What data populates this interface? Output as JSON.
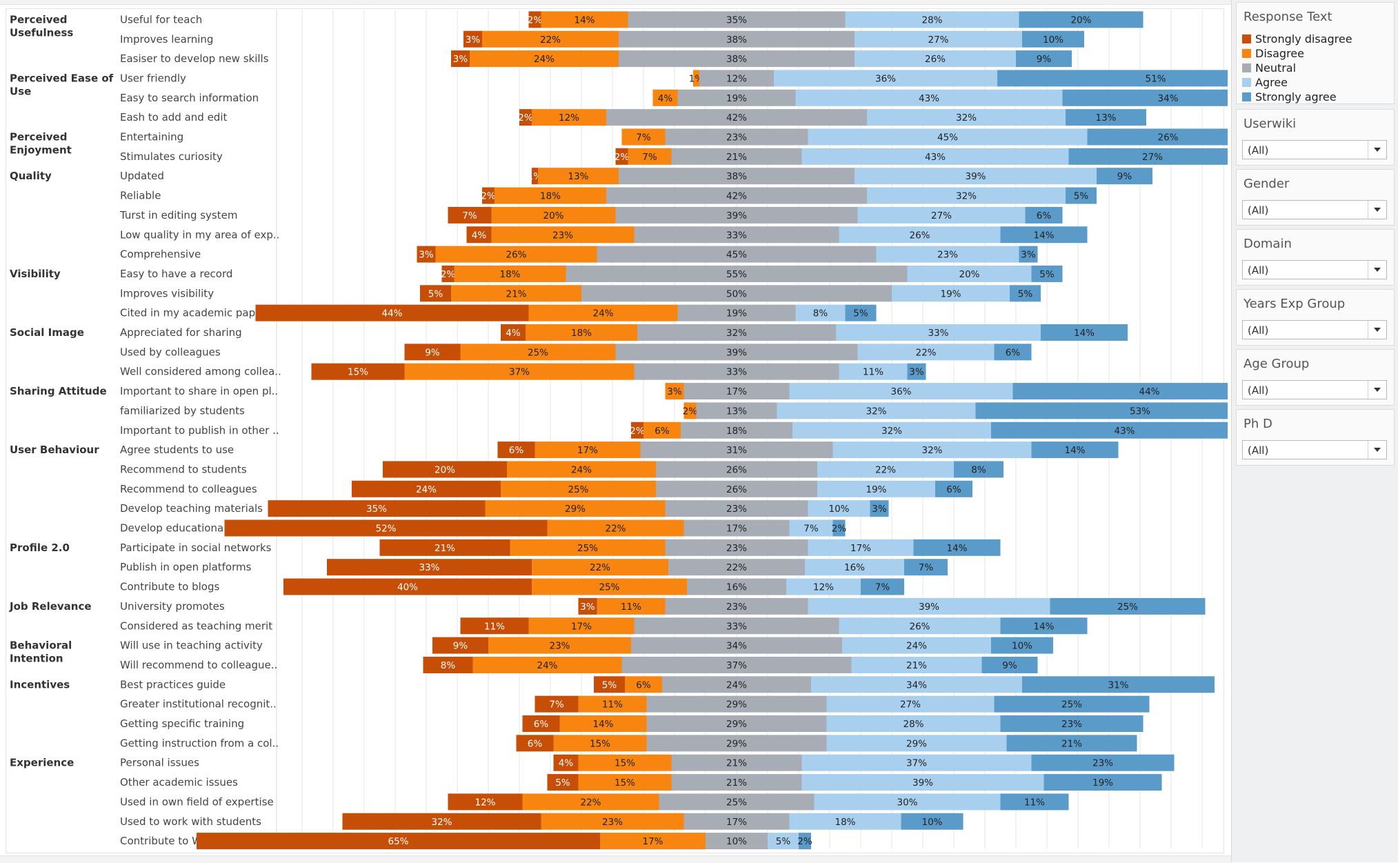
{
  "colors": {
    "strongly_disagree": "#c64e06",
    "disagree": "#f7850f",
    "neutral": "#a7acb5",
    "agree": "#a9cfee",
    "strongly_agree": "#5b9bc9",
    "grid": "#e6e6e6"
  },
  "legend": {
    "title": "Response Text",
    "items": [
      "Strongly disagree",
      "Disagree",
      "Neutral",
      "Agree",
      "Strongly agree"
    ]
  },
  "filters": [
    {
      "title": "Userwiki",
      "value": "(All)"
    },
    {
      "title": "Gender",
      "value": "(All)"
    },
    {
      "title": "Domain",
      "value": "(All)"
    },
    {
      "title": "Years Exp Group",
      "value": "(All)"
    },
    {
      "title": "Age Group",
      "value": "(All)"
    },
    {
      "title": "Ph D",
      "value": "(All)"
    }
  ],
  "chart_data": {
    "type": "bar",
    "orientation": "horizontal",
    "stacking": "diverging",
    "series_names": [
      "Strongly disagree",
      "Disagree",
      "Neutral",
      "Agree",
      "Strongly agree"
    ],
    "grid": true,
    "legend_position": "right",
    "groups": [
      {
        "name": "Perceived Usefulness",
        "rows": [
          {
            "label": "Useful for teach",
            "values": [
              2,
              14,
              35,
              28,
              20
            ]
          },
          {
            "label": "Improves learning",
            "values": [
              3,
              22,
              38,
              27,
              10
            ]
          },
          {
            "label": "Easiser to develop new skills",
            "values": [
              3,
              24,
              38,
              26,
              9
            ]
          }
        ]
      },
      {
        "name": "Perceived Ease of Use",
        "rows": [
          {
            "label": "User friendly",
            "values": [
              0,
              1,
              12,
              36,
              51
            ]
          },
          {
            "label": "Easy to search information",
            "values": [
              0,
              4,
              19,
              43,
              34
            ]
          },
          {
            "label": "Eash to add and edit",
            "values": [
              2,
              12,
              42,
              32,
              13
            ]
          }
        ]
      },
      {
        "name": "Perceived Enjoyment",
        "rows": [
          {
            "label": "Entertaining",
            "values": [
              0,
              7,
              23,
              45,
              26
            ]
          },
          {
            "label": "Stimulates curiosity",
            "values": [
              2,
              7,
              21,
              43,
              27
            ]
          }
        ]
      },
      {
        "name": "Quality",
        "rows": [
          {
            "label": "Updated",
            "values": [
              1,
              13,
              38,
              39,
              9
            ]
          },
          {
            "label": "Reliable",
            "values": [
              2,
              18,
              42,
              32,
              5
            ]
          },
          {
            "label": "Turst in editing system",
            "values": [
              7,
              20,
              39,
              27,
              6
            ]
          },
          {
            "label": "Low quality in my area of exp..",
            "values": [
              4,
              23,
              33,
              26,
              14
            ]
          },
          {
            "label": "Comprehensive",
            "values": [
              3,
              26,
              45,
              23,
              3
            ]
          }
        ]
      },
      {
        "name": "Visibility",
        "rows": [
          {
            "label": "Easy to have a record",
            "values": [
              2,
              18,
              55,
              20,
              5
            ]
          },
          {
            "label": "Improves visibility",
            "values": [
              5,
              21,
              50,
              19,
              5
            ]
          },
          {
            "label": "Cited in my academic papers",
            "values": [
              44,
              24,
              19,
              8,
              5
            ]
          }
        ]
      },
      {
        "name": "Social Image",
        "rows": [
          {
            "label": "Appreciated for sharing",
            "values": [
              4,
              18,
              32,
              33,
              14
            ]
          },
          {
            "label": "Used by colleagues",
            "values": [
              9,
              25,
              39,
              22,
              6
            ]
          },
          {
            "label": "Well considered among collea..",
            "values": [
              15,
              37,
              33,
              11,
              3
            ]
          }
        ]
      },
      {
        "name": "Sharing Attitude",
        "rows": [
          {
            "label": "Important to share in open pl..",
            "values": [
              0,
              3,
              17,
              36,
              44
            ]
          },
          {
            "label": "familiarized by students",
            "values": [
              0,
              2,
              13,
              32,
              53
            ]
          },
          {
            "label": "Important to publish in other ..",
            "values": [
              2,
              6,
              18,
              32,
              43
            ]
          }
        ]
      },
      {
        "name": "User Behaviour",
        "rows": [
          {
            "label": "Agree students to use",
            "values": [
              6,
              17,
              31,
              32,
              14
            ]
          },
          {
            "label": "Recommend to students",
            "values": [
              20,
              24,
              26,
              22,
              8
            ]
          },
          {
            "label": "Recommend to colleagues",
            "values": [
              24,
              25,
              26,
              19,
              6
            ]
          },
          {
            "label": "Develop teaching materials",
            "values": [
              35,
              29,
              23,
              10,
              3
            ]
          },
          {
            "label": "Develop educational activities",
            "values": [
              52,
              22,
              17,
              7,
              2
            ]
          }
        ]
      },
      {
        "name": "Profile 2.0",
        "rows": [
          {
            "label": "Participate in social networks",
            "values": [
              21,
              25,
              23,
              17,
              14
            ]
          },
          {
            "label": "Publish in open platforms",
            "values": [
              33,
              22,
              22,
              16,
              7
            ]
          },
          {
            "label": "Contribute to blogs",
            "values": [
              40,
              25,
              16,
              12,
              7
            ]
          }
        ]
      },
      {
        "name": "Job Relevance",
        "rows": [
          {
            "label": "University promotes",
            "values": [
              3,
              11,
              23,
              39,
              25
            ]
          },
          {
            "label": "Considered as teaching merit",
            "values": [
              11,
              17,
              33,
              26,
              14
            ]
          }
        ]
      },
      {
        "name": "Behavioral Intention",
        "rows": [
          {
            "label": "Will use in teaching activity",
            "values": [
              9,
              23,
              34,
              24,
              10
            ]
          },
          {
            "label": "Will recommend to colleague..",
            "values": [
              8,
              24,
              37,
              21,
              9
            ]
          }
        ]
      },
      {
        "name": "Incentives",
        "rows": [
          {
            "label": "Best practices guide",
            "values": [
              5,
              6,
              24,
              34,
              31
            ]
          },
          {
            "label": "Greater institutional recognit..",
            "values": [
              7,
              11,
              29,
              27,
              25
            ]
          },
          {
            "label": "Getting specific training",
            "values": [
              6,
              14,
              29,
              28,
              23
            ]
          },
          {
            "label": "Getting instruction from a col..",
            "values": [
              6,
              15,
              29,
              29,
              21
            ]
          }
        ]
      },
      {
        "name": "Experience",
        "rows": [
          {
            "label": "Personal issues",
            "values": [
              4,
              15,
              21,
              37,
              23
            ]
          },
          {
            "label": "Other academic issues",
            "values": [
              5,
              15,
              21,
              39,
              19
            ]
          },
          {
            "label": "Used in own field of expertise",
            "values": [
              12,
              22,
              25,
              30,
              11
            ]
          },
          {
            "label": "Used to work with students",
            "values": [
              32,
              23,
              17,
              18,
              10
            ]
          },
          {
            "label": "Contribute to Wikipedia",
            "values": [
              65,
              17,
              10,
              5,
              2
            ]
          }
        ]
      }
    ]
  }
}
